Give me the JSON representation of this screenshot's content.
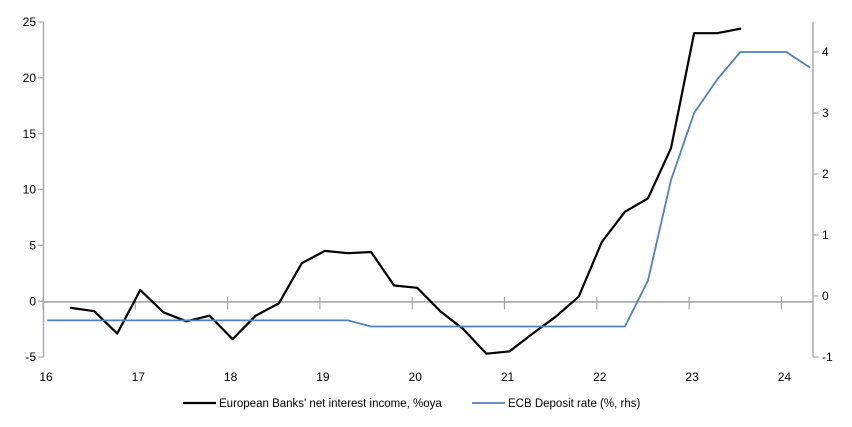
{
  "chart_data": {
    "type": "line",
    "title": "",
    "xlabel": "",
    "ylabel_left": "",
    "ylabel_right": "",
    "x_axis": {
      "tick_labels": [
        "16",
        "17",
        "18",
        "19",
        "20",
        "21",
        "22",
        "23",
        "24"
      ],
      "tick_values": [
        16,
        17,
        18,
        19,
        20,
        21,
        22,
        23,
        24
      ],
      "range": [
        16,
        24.34
      ]
    },
    "left_y_axis": {
      "tick_labels": [
        "25",
        "20",
        "15",
        "10",
        "5",
        "0",
        "-5"
      ],
      "tick_values": [
        25,
        20,
        15,
        10,
        5,
        0,
        -5
      ],
      "range": [
        -5,
        25
      ]
    },
    "right_y_axis": {
      "tick_labels": [
        "4",
        "3",
        "2",
        "1",
        "0",
        "-1"
      ],
      "tick_values": [
        4,
        3,
        2,
        1,
        0,
        -1
      ],
      "range": [
        -1,
        4.5
      ]
    },
    "grid": "zero-line-only",
    "legend_position": "bottom",
    "series": [
      {
        "name": "European Banks' net interest income, %oya",
        "axis": "left",
        "color": "#000000",
        "line_width": 2.2,
        "points": [
          [
            16.25,
            -0.6
          ],
          [
            16.5,
            -0.9
          ],
          [
            16.75,
            -2.9
          ],
          [
            17.0,
            1.0
          ],
          [
            17.25,
            -1.0
          ],
          [
            17.5,
            -1.8
          ],
          [
            17.75,
            -1.3
          ],
          [
            18.0,
            -3.4
          ],
          [
            18.25,
            -1.3
          ],
          [
            18.5,
            -0.2
          ],
          [
            18.75,
            3.4
          ],
          [
            19.0,
            4.5
          ],
          [
            19.25,
            4.3
          ],
          [
            19.5,
            4.4
          ],
          [
            19.75,
            1.4
          ],
          [
            20.0,
            1.2
          ],
          [
            20.25,
            -0.9
          ],
          [
            20.5,
            -2.5
          ],
          [
            20.75,
            -4.7
          ],
          [
            21.0,
            -4.5
          ],
          [
            21.25,
            -2.9
          ],
          [
            21.5,
            -1.4
          ],
          [
            21.75,
            0.4
          ],
          [
            22.0,
            5.3
          ],
          [
            22.25,
            8.0
          ],
          [
            22.5,
            9.2
          ],
          [
            22.75,
            13.7
          ],
          [
            23.0,
            24.0
          ],
          [
            23.25,
            24.0
          ],
          [
            23.5,
            24.4
          ]
        ]
      },
      {
        "name": "ECB Deposit rate (%, rhs)",
        "axis": "right",
        "color": "#4f81bd",
        "line_width": 1.8,
        "points": [
          [
            16.0,
            -0.4
          ],
          [
            19.25,
            -0.4
          ],
          [
            19.5,
            -0.5
          ],
          [
            22.25,
            -0.5
          ],
          [
            22.5,
            0.25
          ],
          [
            22.75,
            1.9
          ],
          [
            23.0,
            3.0
          ],
          [
            23.25,
            3.55
          ],
          [
            23.5,
            4.0
          ],
          [
            24.0,
            4.0
          ],
          [
            24.25,
            3.75
          ]
        ]
      }
    ],
    "axis_color": "#a6a6a6"
  }
}
